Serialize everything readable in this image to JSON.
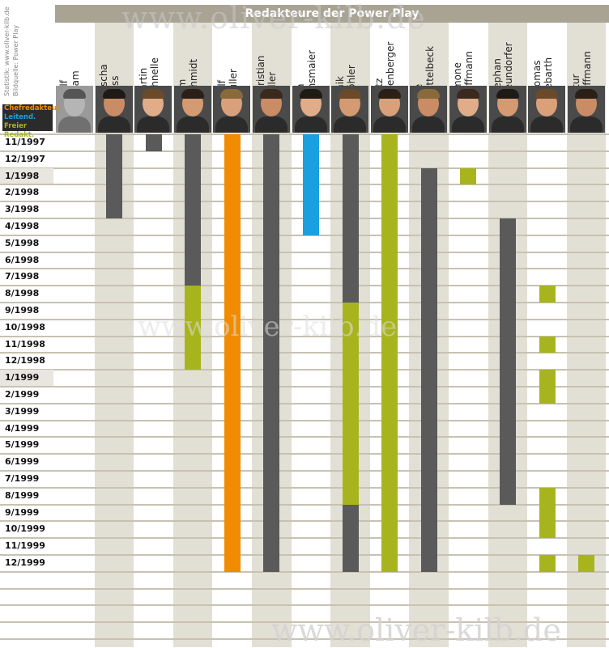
{
  "chart_data": {
    "type": "gantt",
    "title": "Redakteure der Power Play",
    "source_line1": "Statistik: www.oliver-kilb.de",
    "source_line2": "Bildquelle: Power Play",
    "legend": [
      {
        "label": "Chefredakteur",
        "color": "#f08c00"
      },
      {
        "label": "Leitend. Red.",
        "color": "#1aa0e0"
      },
      {
        "label": "Freier Redakt.",
        "color": "#a8b41e"
      }
    ],
    "role_colors": {
      "chef": "#f08c00",
      "leitend": "#1aa0e0",
      "frei": "#a8b41e",
      "redakteur": "#5a5a5a"
    },
    "months": [
      "11/1997",
      "12/1997",
      "1/1998",
      "2/1998",
      "3/1998",
      "4/1998",
      "5/1998",
      "6/1998",
      "7/1998",
      "8/1998",
      "9/1998",
      "10/1998",
      "11/1998",
      "12/1998",
      "1/1999",
      "2/1999",
      "3/1999",
      "4/1999",
      "5/1999",
      "6/1999",
      "7/1999",
      "8/1999",
      "9/1999",
      "10/1999",
      "11/1999",
      "12/1999"
    ],
    "editors": [
      {
        "first": "Ralf",
        "last": "Adam",
        "spans": []
      },
      {
        "first": "Sascha",
        "last": "Gliss",
        "spans": [
          {
            "from": "11/1997",
            "to": "3/1998",
            "role": "redakteur"
          }
        ]
      },
      {
        "first": "Martin",
        "last": "Schnelle",
        "spans": [
          {
            "from": "11/1997",
            "to": "11/1997",
            "role": "redakteur"
          }
        ]
      },
      {
        "first": "Tom",
        "last": "Schmidt",
        "spans": [
          {
            "from": "11/1997",
            "to": "7/1998",
            "role": "redakteur"
          },
          {
            "from": "8/1998",
            "to": "12/1998",
            "role": "frei"
          }
        ]
      },
      {
        "first": "Ralf",
        "last": "Müller",
        "spans": [
          {
            "from": "11/1997",
            "to": "12/1999",
            "role": "chef"
          }
        ]
      },
      {
        "first": "Christian",
        "last": "Peller",
        "spans": [
          {
            "from": "11/1997",
            "to": "12/1999",
            "role": "redakteur"
          }
        ]
      },
      {
        "first": "Jan",
        "last": "Binsmaier",
        "spans": [
          {
            "from": "11/1997",
            "to": "4/1998",
            "role": "leitend"
          }
        ]
      },
      {
        "first": "Maik",
        "last": "Wöhler",
        "spans": [
          {
            "from": "11/1997",
            "to": "8/1998",
            "role": "redakteur"
          },
          {
            "from": "9/1998",
            "to": "8/1999",
            "role": "frei"
          },
          {
            "from": "9/1999",
            "to": "12/1999",
            "role": "redakteur"
          }
        ]
      },
      {
        "first": "Fritz",
        "last": "Effenberger",
        "spans": [
          {
            "from": "11/1997",
            "to": "12/1999",
            "role": "frei"
          }
        ]
      },
      {
        "first": "Joe",
        "last": "Nettelbeck",
        "spans": [
          {
            "from": "1/1998",
            "to": "12/1999",
            "role": "redakteur"
          }
        ]
      },
      {
        "first": "Simone",
        "last": "Hoffmann",
        "spans": [
          {
            "from": "1/1998",
            "to": "1/1998",
            "role": "frei"
          }
        ]
      },
      {
        "first": "Stephan",
        "last": "Freundorfer",
        "spans": [
          {
            "from": "4/1998",
            "to": "8/1999",
            "role": "redakteur"
          }
        ]
      },
      {
        "first": "Thomas",
        "last": "Ziebarth",
        "spans": [
          {
            "from": "8/1998",
            "to": "8/1998",
            "role": "frei"
          },
          {
            "from": "11/1998",
            "to": "11/1998",
            "role": "frei"
          },
          {
            "from": "1/1999",
            "to": "2/1999",
            "role": "frei"
          },
          {
            "from": "8/1999",
            "to": "10/1999",
            "role": "frei"
          },
          {
            "from": "12/1999",
            "to": "12/1999",
            "role": "frei"
          }
        ]
      },
      {
        "first": "Artur",
        "last": "Hoffmann",
        "spans": [
          {
            "from": "12/1999",
            "to": "12/1999",
            "role": "frei"
          }
        ]
      }
    ]
  },
  "watermark": "www.oliver-kilb.de"
}
